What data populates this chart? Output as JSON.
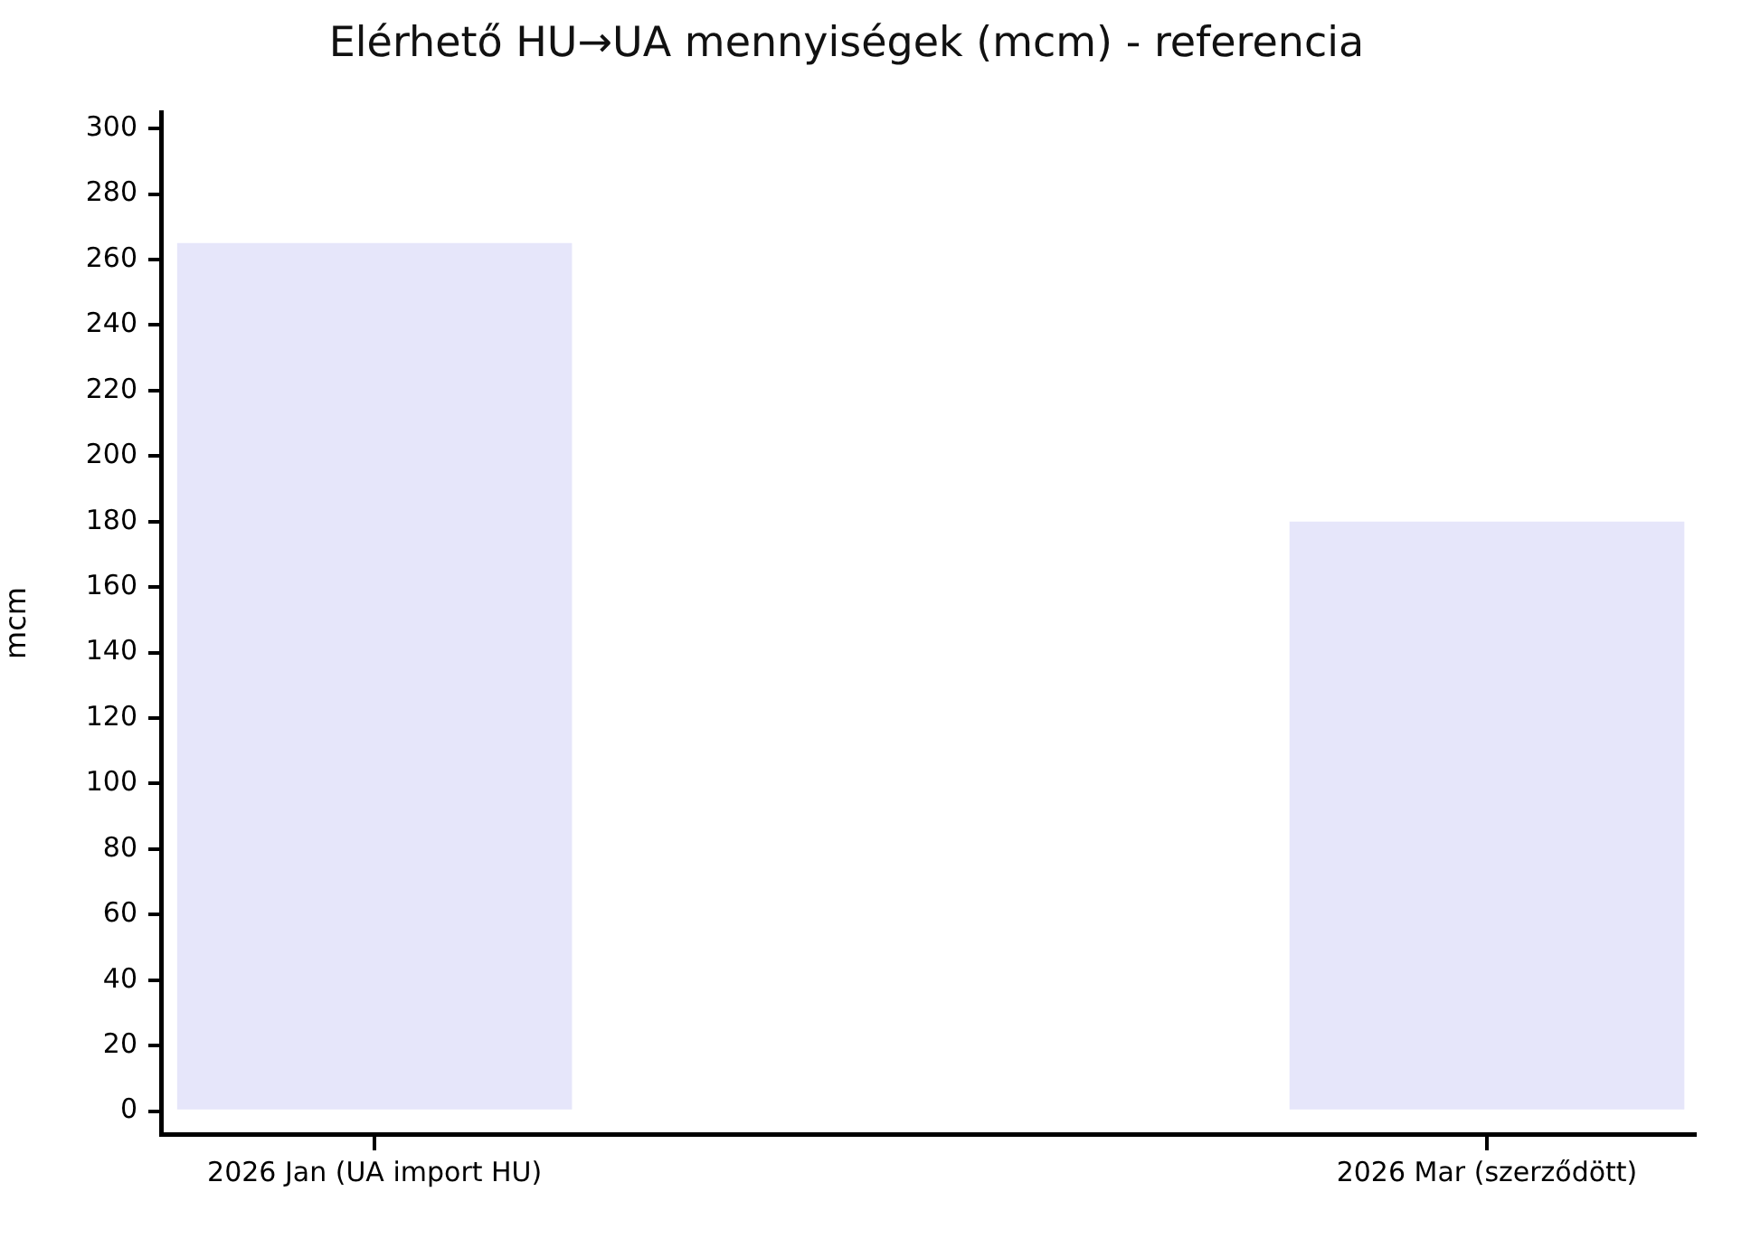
{
  "chart_data": {
    "type": "bar",
    "title": "Elérhető HU→UA mennyiségek (mcm) - referencia",
    "ylabel": "mcm",
    "categories": [
      "2026 Jan (UA import HU)",
      "2026 Mar (szerződött)"
    ],
    "values": [
      265,
      180
    ],
    "color": "#e6e6fa",
    "ylim": [
      -7,
      305
    ],
    "yticks": [
      0,
      20,
      40,
      60,
      80,
      100,
      120,
      140,
      160,
      180,
      200,
      220,
      240,
      260,
      280,
      300
    ]
  }
}
